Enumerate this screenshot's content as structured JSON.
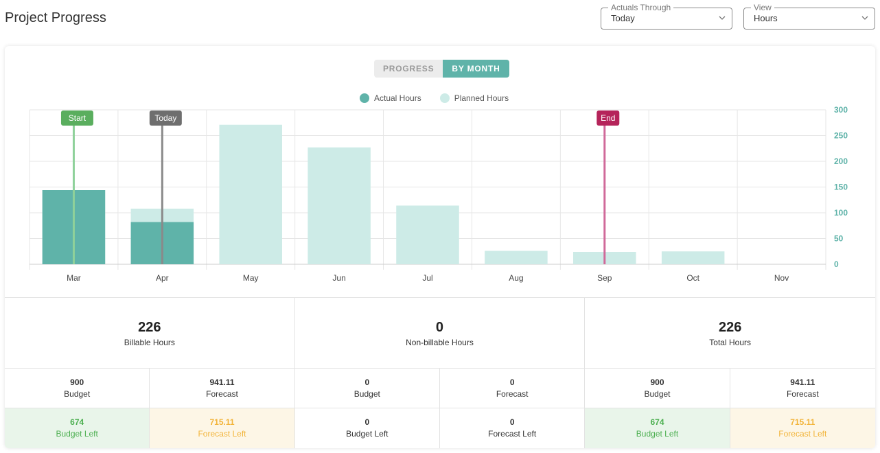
{
  "header": {
    "title": "Project Progress"
  },
  "filters": {
    "actuals": {
      "legend": "Actuals Through",
      "value": "Today"
    },
    "view": {
      "legend": "View",
      "value": "Hours"
    }
  },
  "toggle": {
    "progress": "PROGRESS",
    "by_month": "BY MONTH",
    "active": "by_month"
  },
  "legend": {
    "actual": "Actual Hours",
    "planned": "Planned Hours"
  },
  "colors": {
    "actual": "#5fb3a9",
    "planned": "#cdebe7",
    "start": "#5aae5e",
    "today": "#6e6e6e",
    "end": "#b5245a"
  },
  "chart_data": {
    "type": "bar",
    "categories": [
      "Mar",
      "Apr",
      "May",
      "Jun",
      "Jul",
      "Aug",
      "Sep",
      "Oct",
      "Nov"
    ],
    "series": [
      {
        "name": "Actual Hours",
        "values": [
          144,
          82,
          0,
          0,
          0,
          0,
          0,
          0,
          0
        ]
      },
      {
        "name": "Planned Hours",
        "values": [
          144,
          108,
          271,
          227,
          114,
          26,
          24,
          25,
          0
        ]
      }
    ],
    "ylim": [
      0,
      300
    ],
    "yticks": [
      0,
      50,
      100,
      150,
      200,
      250,
      300
    ],
    "markers": [
      {
        "label": "Start",
        "category": "Mar"
      },
      {
        "label": "Today",
        "category": "Apr"
      },
      {
        "label": "End",
        "category": "Sep"
      }
    ],
    "grid": true,
    "legend_position": "top-center"
  },
  "stats": [
    {
      "value": "226",
      "label": "Billable Hours",
      "budget": {
        "value": "900",
        "label": "Budget"
      },
      "forecast": {
        "value": "941.11",
        "label": "Forecast"
      },
      "budget_left": {
        "value": "674",
        "label": "Budget Left"
      },
      "forecast_left": {
        "value": "715.11",
        "label": "Forecast Left"
      }
    },
    {
      "value": "0",
      "label": "Non-billable Hours",
      "budget": {
        "value": "0",
        "label": "Budget"
      },
      "forecast": {
        "value": "0",
        "label": "Forecast"
      },
      "budget_left": {
        "value": "0",
        "label": "Budget Left"
      },
      "forecast_left": {
        "value": "0",
        "label": "Forecast Left"
      }
    },
    {
      "value": "226",
      "label": "Total Hours",
      "budget": {
        "value": "900",
        "label": "Budget"
      },
      "forecast": {
        "value": "941.11",
        "label": "Forecast"
      },
      "budget_left": {
        "value": "674",
        "label": "Budget Left"
      },
      "forecast_left": {
        "value": "715.11",
        "label": "Forecast Left"
      }
    }
  ]
}
